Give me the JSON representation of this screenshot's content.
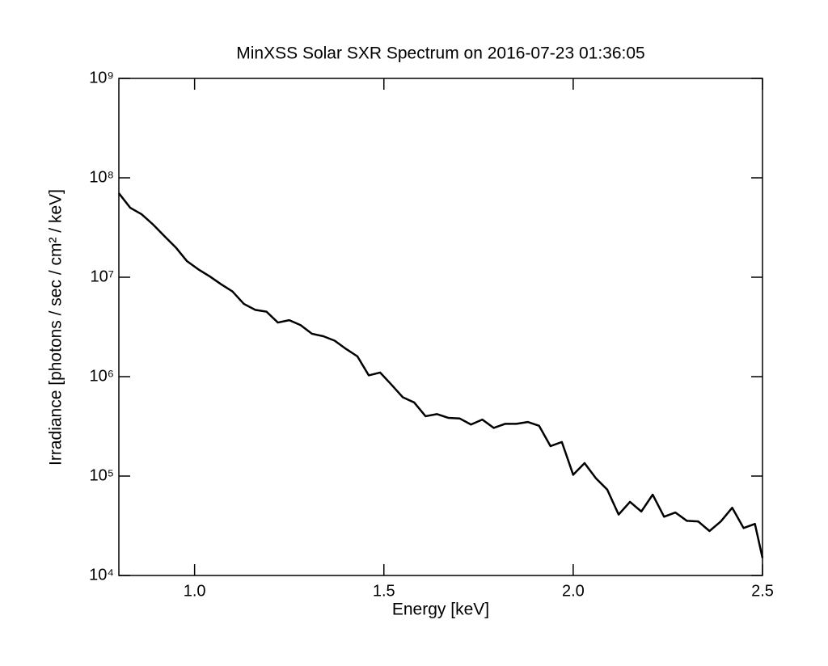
{
  "chart_data": {
    "type": "line",
    "title": "MinXSS Solar SXR Spectrum on 2016-07-23 01:36:05",
    "x_label": "Energy [keV]",
    "y_label": "Irradiance [photons / sec / cm² / keV]",
    "x": [
      0.8,
      0.83,
      0.86,
      0.89,
      0.92,
      0.95,
      0.98,
      1.01,
      1.04,
      1.07,
      1.1,
      1.13,
      1.16,
      1.19,
      1.22,
      1.25,
      1.28,
      1.31,
      1.34,
      1.37,
      1.4,
      1.43,
      1.46,
      1.49,
      1.52,
      1.55,
      1.58,
      1.61,
      1.64,
      1.67,
      1.7,
      1.73,
      1.76,
      1.79,
      1.82,
      1.85,
      1.88,
      1.91,
      1.94,
      1.97,
      2.0,
      2.03,
      2.06,
      2.09,
      2.12,
      2.15,
      2.18,
      2.21,
      2.24,
      2.27,
      2.3,
      2.33,
      2.36,
      2.39,
      2.42,
      2.45,
      2.48,
      2.5
    ],
    "series": [
      {
        "color": "#000000",
        "values": [
          70000000,
          50000000,
          43000000,
          34000000,
          26000000,
          20000000,
          14500000,
          12000000,
          10200000,
          8500000,
          7200000,
          5400000,
          4700000,
          4500000,
          3500000,
          3700000,
          3300000,
          2700000,
          2550000,
          2300000,
          1900000,
          1600000,
          1030000,
          1100000,
          830000,
          620000,
          550000,
          400000,
          420000,
          385000,
          380000,
          330000,
          370000,
          305000,
          335000,
          335000,
          350000,
          320000,
          200000,
          220000,
          103000,
          135000,
          95000,
          73000,
          41000,
          55000,
          44000,
          65000,
          39000,
          43000,
          35500,
          35000,
          28000,
          35000,
          48000,
          30000,
          33000,
          15000
        ]
      }
    ],
    "xlim": [
      0.8,
      2.5
    ],
    "xticks": [
      {
        "value": 1,
        "label": "1.0"
      },
      1.5,
      {
        "value": 2,
        "label": "2.0"
      },
      2.5
    ],
    "ylim": [
      10000,
      1000000000
    ],
    "yticks": [
      {
        "value": 10000,
        "label": "10⁴"
      },
      {
        "value": 100000,
        "label": "10⁵"
      },
      {
        "value": 1000000,
        "label": "10⁶"
      },
      {
        "value": 10000000,
        "label": "10⁷"
      },
      {
        "value": 100000000,
        "label": "10⁸"
      },
      {
        "value": 1000000000,
        "label": "10⁹"
      }
    ],
    "y_log": true,
    "grid": false
  }
}
